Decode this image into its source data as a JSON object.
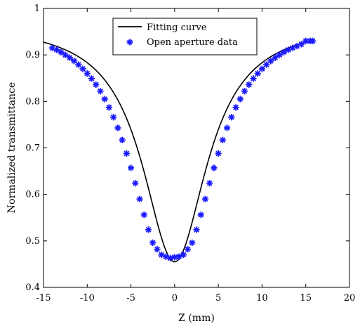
{
  "chart_data": {
    "type": "scatter",
    "title": "",
    "xlabel": "Z (mm)",
    "ylabel": "Normalized transmittance",
    "xlim": [
      -15,
      20
    ],
    "ylim": [
      0.4,
      1.0
    ],
    "grid": false,
    "legend_position": "top-center",
    "x_ticks": [
      "-15",
      "-10",
      "-5",
      "0",
      "5",
      "10",
      "15",
      "20"
    ],
    "y_ticks": [
      "0.4",
      "0.5",
      "0.6",
      "0.7",
      "0.8",
      "0.9",
      "1"
    ],
    "series": [
      {
        "name": "Fitting curve",
        "kind": "line",
        "color": "#000000",
        "model": {
          "baseline": 0.97,
          "depth": 0.515,
          "z0": 4.5
        },
        "x_range": [
          -15,
          16
        ]
      },
      {
        "name": "Open aperture data",
        "kind": "marker",
        "marker": "star",
        "color": "#1a1aff",
        "x": [
          -14.0,
          -13.5,
          -13.0,
          -12.5,
          -12.0,
          -11.5,
          -11.0,
          -10.5,
          -10.0,
          -9.5,
          -9.0,
          -8.5,
          -8.0,
          -7.5,
          -7.0,
          -6.5,
          -6.0,
          -5.5,
          -5.0,
          -4.5,
          -4.0,
          -3.5,
          -3.0,
          -2.5,
          -2.0,
          -1.5,
          -1.0,
          -0.5,
          0.0,
          0.5,
          1.0,
          1.5,
          2.0,
          2.5,
          3.0,
          3.5,
          4.0,
          4.5,
          5.0,
          5.5,
          6.0,
          6.5,
          7.0,
          7.5,
          8.0,
          8.5,
          9.0,
          9.5,
          10.0,
          10.5,
          11.0,
          11.5,
          12.0,
          12.5,
          13.0,
          13.5,
          14.0,
          14.5,
          15.0,
          15.5,
          15.8
        ],
        "y": [
          0.915,
          0.911,
          0.906,
          0.9,
          0.894,
          0.887,
          0.879,
          0.87,
          0.86,
          0.849,
          0.836,
          0.822,
          0.805,
          0.787,
          0.766,
          0.743,
          0.717,
          0.688,
          0.657,
          0.624,
          0.59,
          0.556,
          0.524,
          0.496,
          0.482,
          0.47,
          0.466,
          0.463,
          0.465,
          0.466,
          0.47,
          0.482,
          0.496,
          0.524,
          0.556,
          0.59,
          0.624,
          0.657,
          0.688,
          0.717,
          0.743,
          0.766,
          0.787,
          0.805,
          0.822,
          0.836,
          0.849,
          0.86,
          0.87,
          0.879,
          0.887,
          0.894,
          0.9,
          0.906,
          0.911,
          0.915,
          0.919,
          0.923,
          0.93,
          0.93,
          0.93
        ]
      }
    ]
  }
}
